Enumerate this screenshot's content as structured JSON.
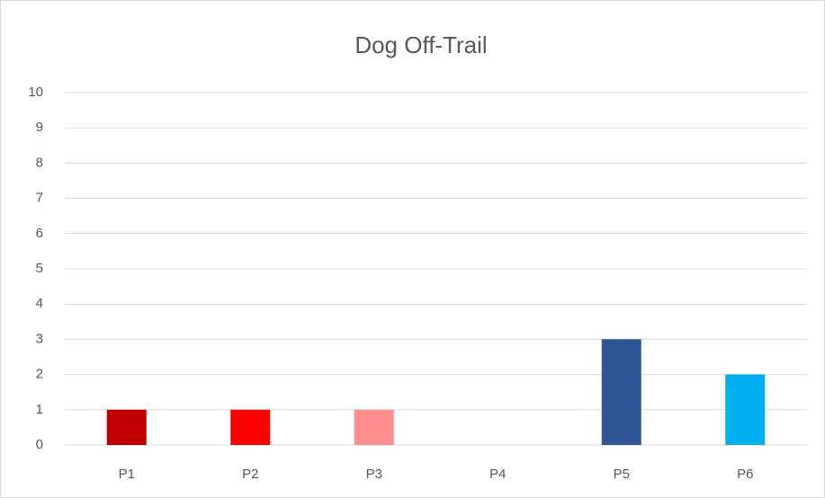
{
  "chart_data": {
    "type": "bar",
    "title": "Dog Off-Trail",
    "categories": [
      "P1",
      "P2",
      "P3",
      "P4",
      "P5",
      "P6"
    ],
    "values": [
      1,
      1,
      1,
      0,
      3,
      2
    ],
    "colors": [
      "#c00000",
      "#ff0000",
      "#ff8f8f",
      null,
      "#2f5597",
      "#00b0f0"
    ],
    "ylim": [
      0,
      10
    ],
    "yticks": [
      0,
      1,
      2,
      3,
      4,
      5,
      6,
      7,
      8,
      9,
      10
    ],
    "grid": true
  }
}
